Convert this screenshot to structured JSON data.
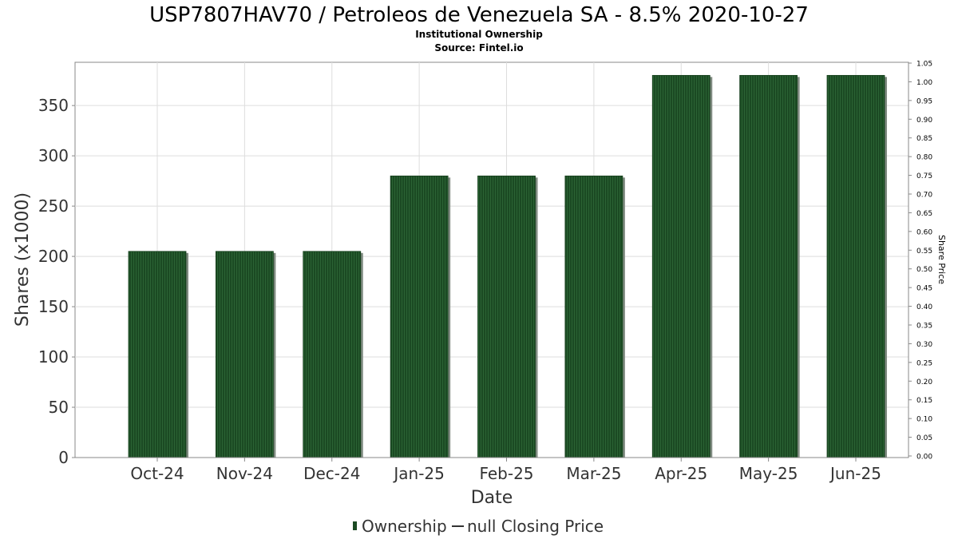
{
  "title": "USP7807HAV70 / Petroleos de Venezuela SA - 8.5% 2020-10-27",
  "subtitle": "Institutional Ownership",
  "source": "Source: Fintel.io",
  "chart_data": {
    "type": "bar",
    "categories": [
      "Oct-24",
      "Nov-24",
      "Dec-24",
      "Jan-25",
      "Feb-25",
      "Mar-25",
      "Apr-25",
      "May-25",
      "Jun-25"
    ],
    "series": [
      {
        "name": "Ownership",
        "values": [
          205,
          205,
          205,
          280,
          280,
          280,
          380,
          380,
          380
        ],
        "color": "#1b4a23"
      }
    ],
    "xlabel": "Date",
    "ylabel": "Shares (x1000)",
    "y2label": "Share Price",
    "ylim": [
      0,
      393
    ],
    "yticks": [
      "0",
      "50",
      "100",
      "150",
      "200",
      "250",
      "300",
      "350"
    ],
    "y2lim": [
      0,
      1.05
    ],
    "y2ticks": [
      "0.00",
      "0.05",
      "0.10",
      "0.15",
      "0.20",
      "0.25",
      "0.30",
      "0.35",
      "0.40",
      "0.45",
      "0.50",
      "0.55",
      "0.60",
      "0.65",
      "0.70",
      "0.75",
      "0.80",
      "0.85",
      "0.90",
      "0.95",
      "1.00",
      "1.05"
    ],
    "grid": true,
    "legend": [
      {
        "label": "Ownership",
        "marker": "bar",
        "color": "#1b4a23"
      },
      {
        "label": "null Closing Price",
        "marker": "line",
        "color": "#333333"
      }
    ],
    "legend_position": "bottom"
  }
}
